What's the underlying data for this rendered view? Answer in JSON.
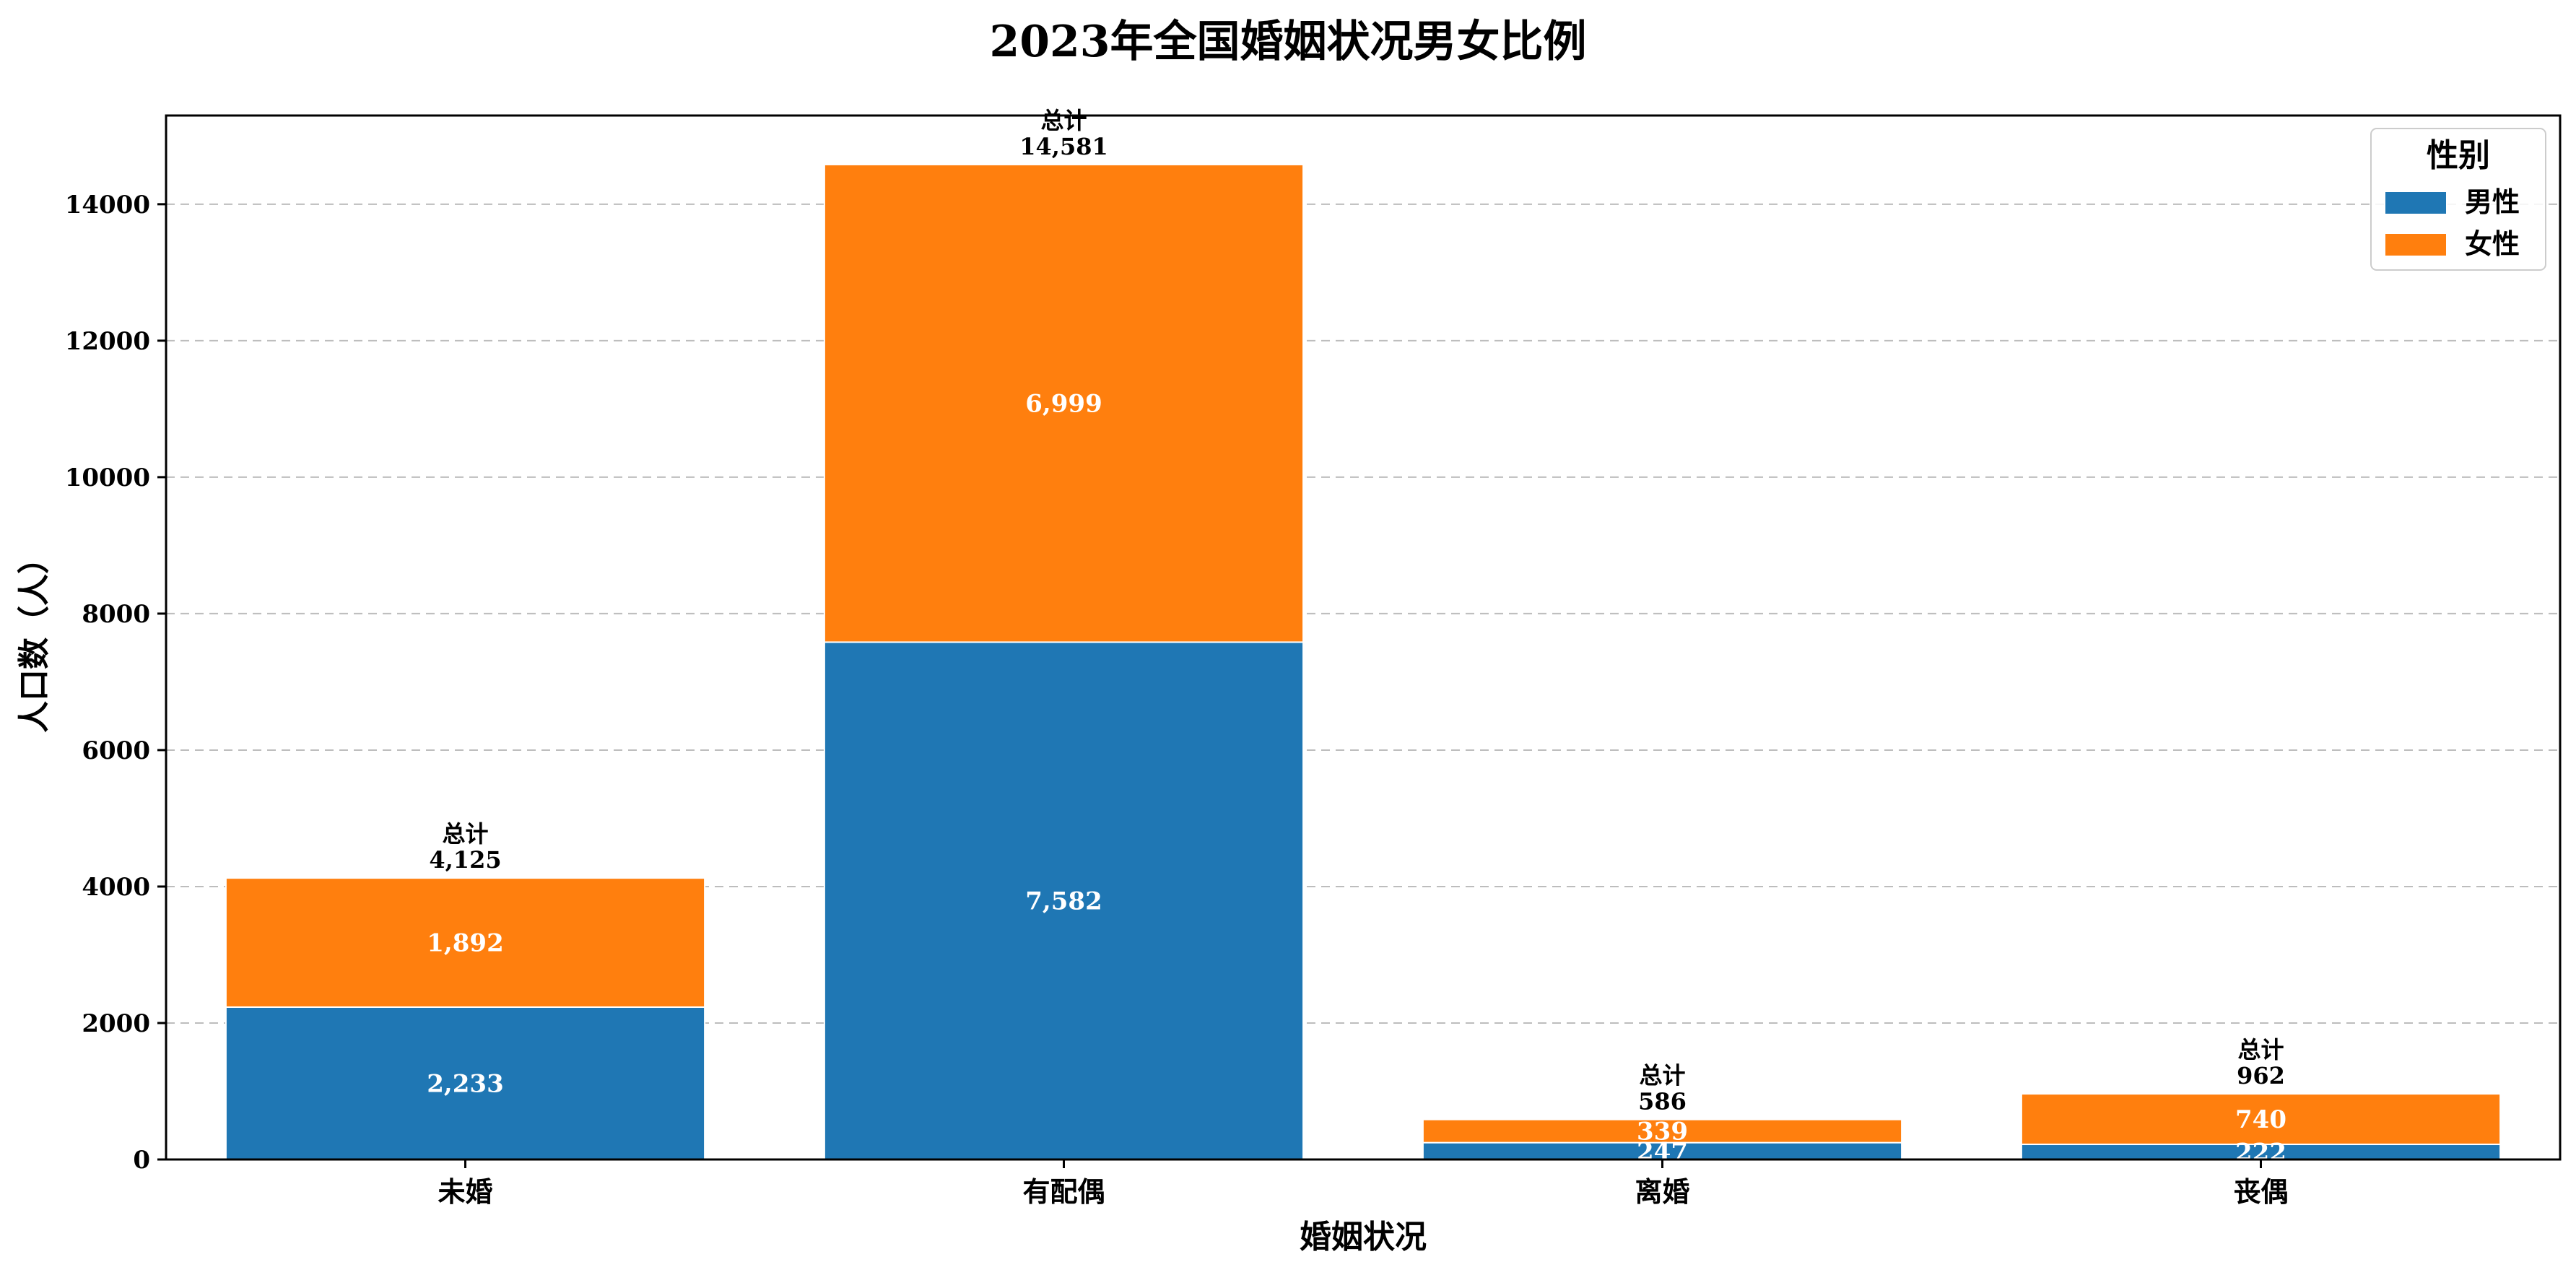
{
  "chart_data": {
    "type": "bar",
    "stacked": true,
    "title": "2023年全国婚姻状况男女比例",
    "xlabel": "婚姻状况",
    "ylabel": "人口数（人）",
    "categories": [
      "未婚",
      "有配偶",
      "离婚",
      "丧偶"
    ],
    "series": [
      {
        "name": "男性",
        "color": "#1f77b4",
        "values": [
          2233,
          7582,
          247,
          222
        ],
        "labels": [
          "2,233",
          "7,582",
          "247",
          "222"
        ]
      },
      {
        "name": "女性",
        "color": "#ff7f0e",
        "values": [
          1892,
          6999,
          339,
          740
        ],
        "labels": [
          "1,892",
          "6,999",
          "339",
          "740"
        ]
      }
    ],
    "totals": [
      4125,
      14581,
      586,
      962
    ],
    "total_labels": [
      "4,125",
      "14,581",
      "586",
      "962"
    ],
    "total_prefix": "总计",
    "ylim": [
      0,
      15300
    ],
    "yticks": [
      0,
      2000,
      4000,
      6000,
      8000,
      10000,
      12000,
      14000
    ],
    "ytick_labels": [
      "0",
      "2000",
      "4000",
      "6000",
      "8000",
      "10000",
      "12000",
      "14000"
    ],
    "grid": "y-dashed",
    "legend": {
      "title": "性别",
      "position": "top-right"
    }
  }
}
